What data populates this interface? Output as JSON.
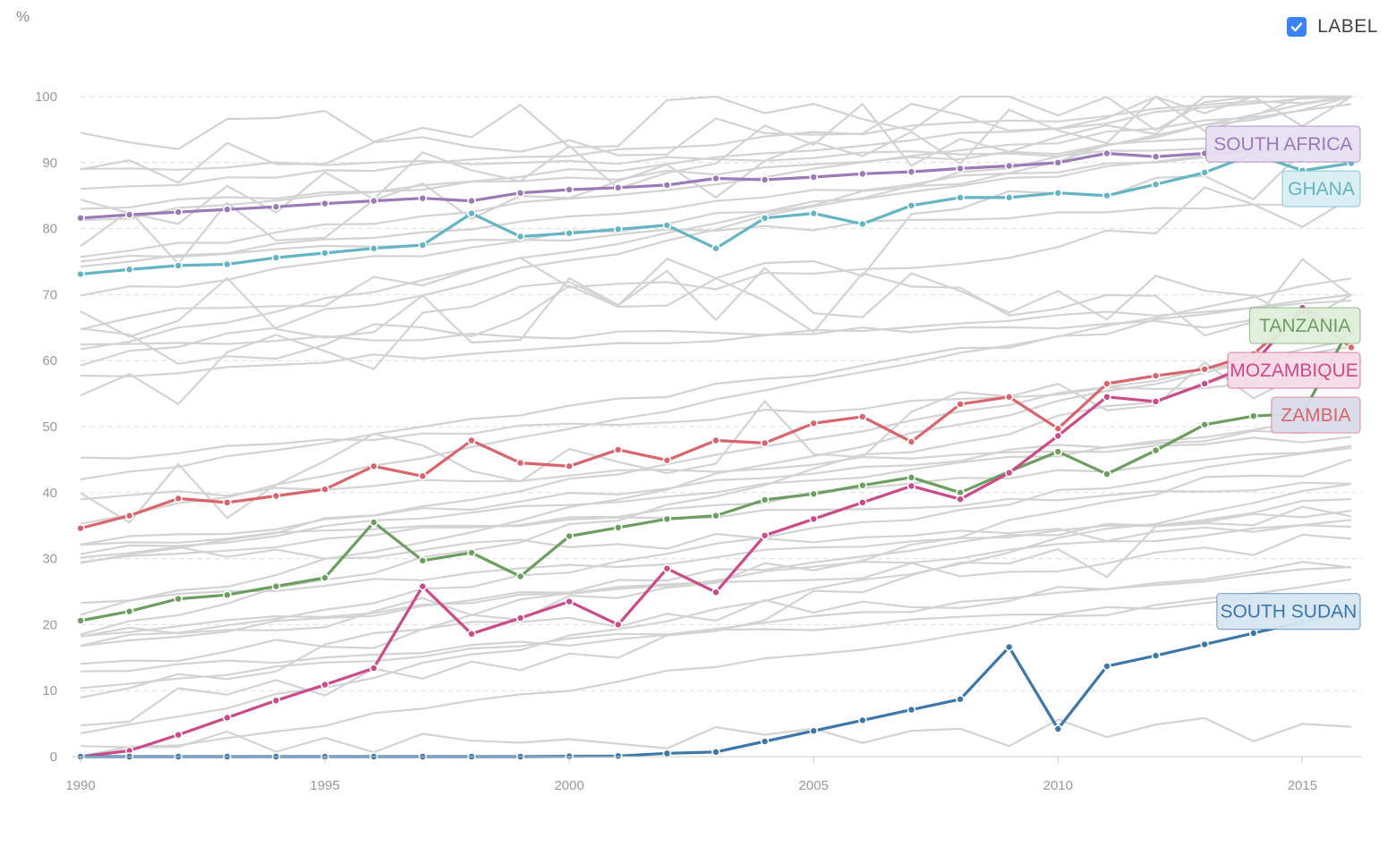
{
  "toggle": {
    "label": "LABEL",
    "checked": true
  },
  "chart_data": {
    "type": "line",
    "title": "",
    "xlabel": "",
    "ylabel": "%",
    "xlim": [
      1990,
      2016
    ],
    "ylim": [
      0,
      100
    ],
    "x_ticks": [
      1990,
      1995,
      2000,
      2005,
      2010,
      2015
    ],
    "y_ticks": [
      0,
      10,
      20,
      30,
      40,
      50,
      60,
      70,
      80,
      90,
      100
    ],
    "grid": "horizontal dashed",
    "x": [
      1990,
      1991,
      1992,
      1993,
      1994,
      1995,
      1996,
      1997,
      1998,
      1999,
      2000,
      2001,
      2002,
      2003,
      2004,
      2005,
      2006,
      2007,
      2008,
      2009,
      2010,
      2011,
      2012,
      2013,
      2014,
      2015,
      2016
    ],
    "highlighted_series": [
      {
        "name": "SOUTH AFRICA",
        "color": "#9b7ab8",
        "label_bg": "#e8e0f1",
        "values": [
          81.6,
          82.1,
          82.5,
          82.9,
          83.3,
          83.8,
          84.2,
          84.6,
          84.2,
          85.4,
          85.9,
          86.2,
          86.6,
          87.6,
          87.4,
          87.8,
          88.3,
          88.6,
          89.1,
          89.5,
          90.0,
          91.4,
          90.9,
          91.4,
          91.7,
          92.0,
          92.8
        ]
      },
      {
        "name": "GHANA",
        "color": "#63b5c4",
        "label_bg": "#d8eef2",
        "values": [
          73.1,
          73.8,
          74.4,
          74.6,
          75.6,
          76.3,
          77.0,
          77.5,
          82.3,
          78.8,
          79.3,
          79.9,
          80.5,
          77.0,
          81.6,
          82.3,
          80.7,
          83.5,
          84.7,
          84.7,
          85.4,
          85.0,
          86.7,
          88.5,
          91.3,
          88.8,
          89.9
        ]
      },
      {
        "name": "TANZANIA",
        "color": "#6c9e5f",
        "label_bg": "#dfeedb",
        "values": [
          20.6,
          22.0,
          23.9,
          24.5,
          25.8,
          27.1,
          35.5,
          29.7,
          30.9,
          27.3,
          33.4,
          34.7,
          36.0,
          36.5,
          38.9,
          39.8,
          41.1,
          42.3,
          40.0,
          43.2,
          46.2,
          42.8,
          46.4,
          50.3,
          51.6,
          52.0,
          65.3
        ]
      },
      {
        "name": "ZAMBIA",
        "color": "#d9646c",
        "label_bg": "#d9dce9",
        "values": [
          34.6,
          36.5,
          39.1,
          38.5,
          39.5,
          40.5,
          44.0,
          42.5,
          47.9,
          44.5,
          44.0,
          46.5,
          44.9,
          47.9,
          47.5,
          50.5,
          51.5,
          47.7,
          53.4,
          54.5,
          49.7,
          56.5,
          57.7,
          58.7,
          61.0,
          67.5,
          62.0
        ]
      },
      {
        "name": "MOZAMBIQUE",
        "color": "#cc4a88",
        "label_bg": "#f5dbe7",
        "values": [
          0.0,
          0.9,
          3.3,
          5.9,
          8.5,
          10.9,
          13.4,
          25.8,
          18.6,
          21.0,
          23.5,
          20.0,
          28.5,
          24.9,
          33.5,
          36.0,
          38.5,
          41.0,
          39.0,
          43.0,
          48.6,
          54.5,
          53.8,
          56.5,
          59.5,
          68.0,
          64.0
        ]
      },
      {
        "name": "SOUTH SUDAN",
        "color": "#3d77aa",
        "label_bg": "#d7e6f2",
        "values": [
          0.0,
          0.0,
          0.0,
          0.0,
          0.0,
          0.0,
          0.0,
          0.0,
          0.0,
          0.0,
          0.05,
          0.1,
          0.5,
          0.7,
          2.3,
          3.9,
          5.5,
          7.1,
          8.7,
          16.6,
          4.2,
          13.7,
          15.3,
          17.0,
          18.7,
          20.4,
          22.0
        ]
      }
    ]
  },
  "colors": {
    "background_line": "#d3d3d3",
    "axis": "#cccccc",
    "grid": "#e0e0e0",
    "checkbox": "#3b82f6"
  }
}
